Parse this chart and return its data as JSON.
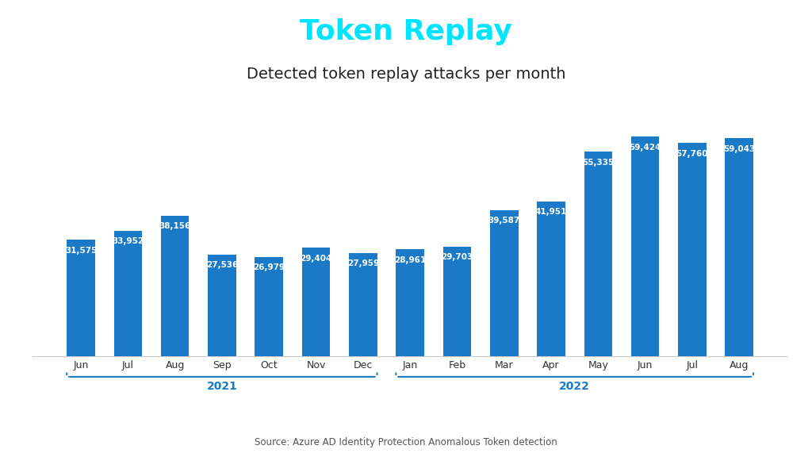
{
  "title": "Token Replay",
  "subtitle": "Detected token replay attacks per month",
  "source": "Source: Azure AD Identity Protection Anomalous Token detection",
  "categories": [
    "Jun",
    "Jul",
    "Aug",
    "Sep",
    "Oct",
    "Nov",
    "Dec",
    "Jan",
    "Feb",
    "Mar",
    "Apr",
    "May",
    "Jun",
    "Jul",
    "Aug"
  ],
  "values": [
    31575,
    33952,
    38156,
    27536,
    26979,
    29404,
    27959,
    28961,
    29703,
    39587,
    41951,
    55335,
    59424,
    57760,
    59043
  ],
  "bar_color": "#1a7ac7",
  "title_color": "#00e5ff",
  "subtitle_color": "#222222",
  "background_color": "#ffffff",
  "year_2021_label": "2021",
  "year_2022_label": "2022",
  "year_color": "#1a7ac7",
  "ylim": [
    0,
    68000
  ],
  "figsize": [
    10.24,
    5.76
  ],
  "dpi": 100
}
